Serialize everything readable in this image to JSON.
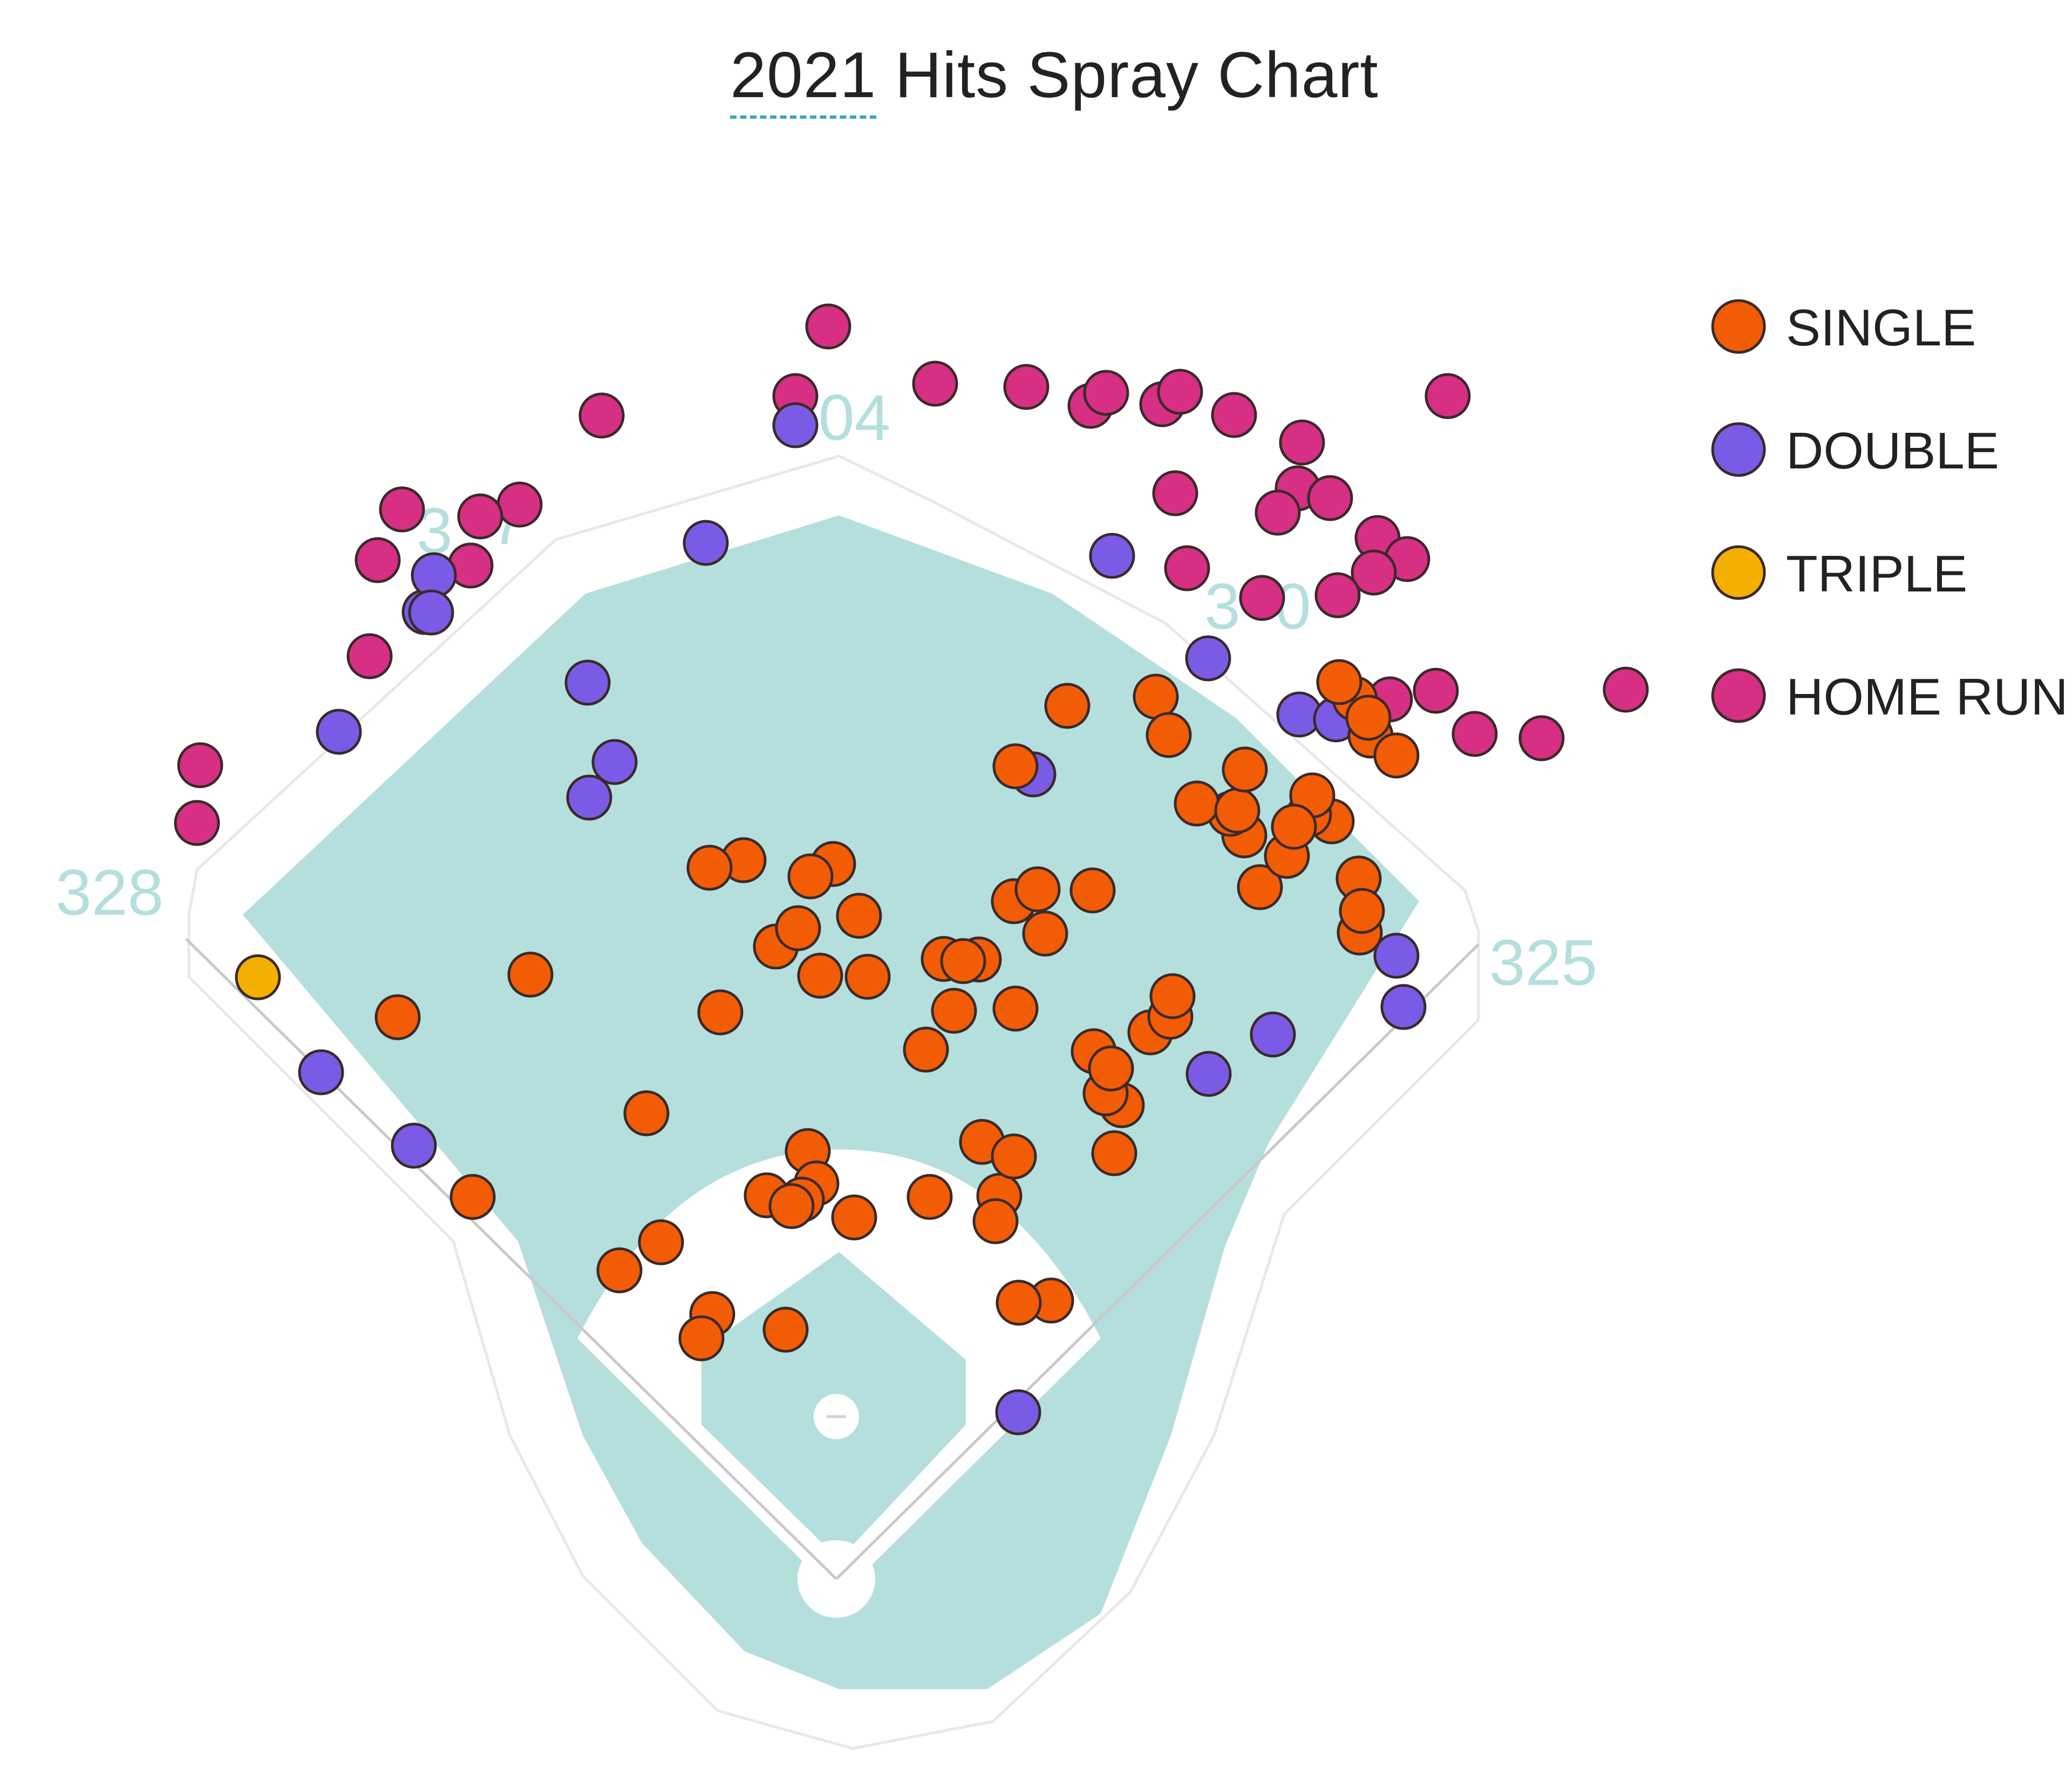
{
  "chart_data": {
    "type": "scatter",
    "title_year": "2021",
    "title_rest": " Hits Spray Chart",
    "colors": {
      "field": "#b4dfdc",
      "single": "#f25c05",
      "double": "#7b5be6",
      "triple": "#f4b000",
      "home_run": "#d62f84"
    },
    "fence_labels": {
      "left_line": "328",
      "left_center": "3",
      "left_center_suffix": "7",
      "center": "404",
      "right_center_a": "3",
      "right_center_b": "0",
      "right_line": "325"
    },
    "legend": [
      {
        "key": "single",
        "label": "SINGLE"
      },
      {
        "key": "double",
        "label": "DOUBLE"
      },
      {
        "key": "triple",
        "label": "TRIPLE"
      },
      {
        "key": "home_run",
        "label": "HOME RUN"
      }
    ],
    "points": {
      "single": [
        [
          1882,
          1420
        ],
        [
          1978,
          1308
        ],
        [
          2511,
          1295
        ],
        [
          2540,
          1363
        ],
        [
          2588,
          1400
        ],
        [
          2518,
          1628
        ],
        [
          2520,
          1728
        ],
        [
          2524,
          1688
        ],
        [
          1879,
          1670
        ],
        [
          1923,
          1648
        ],
        [
          2335,
          1644
        ],
        [
          2306,
          1548
        ],
        [
          2280,
          1508
        ],
        [
          2385,
          1586
        ],
        [
          2468,
          1522
        ],
        [
          2426,
          1509
        ],
        [
          2432,
          1474
        ],
        [
          2218,
          1489
        ],
        [
          2293,
          1502
        ],
        [
          2307,
          1426
        ],
        [
          2398,
          1532
        ],
        [
          1882,
          1869
        ],
        [
          2027,
          1948
        ],
        [
          2079,
          2048
        ],
        [
          2065,
          2137
        ],
        [
          2049,
          2026
        ],
        [
          2059,
          1980
        ],
        [
          2132,
          1913
        ],
        [
          2169,
          1884
        ],
        [
          2173,
          1846
        ],
        [
          1937,
          1730
        ],
        [
          1716,
          1945
        ],
        [
          1768,
          1873
        ],
        [
          1749,
          1777
        ],
        [
          1814,
          1778
        ],
        [
          1820,
          2116
        ],
        [
          1852,
          2216
        ],
        [
          1845,
          2263
        ],
        [
          1879,
          2143
        ],
        [
          1723,
          2218
        ],
        [
          1608,
          1810
        ],
        [
          1592,
          1697
        ],
        [
          1544,
          1601
        ],
        [
          1502,
          1624
        ],
        [
          1520,
          1808
        ],
        [
          1438,
          1754
        ],
        [
          1479,
          1720
        ],
        [
          1378,
          1594
        ],
        [
          1315,
          1608
        ],
        [
          1335,
          1876
        ],
        [
          1497,
          2133
        ],
        [
          1513,
          2193
        ],
        [
          1486,
          2223
        ],
        [
          1421,
          2215
        ],
        [
          1467,
          2235
        ],
        [
          1583,
          2256
        ],
        [
          1198,
          2063
        ],
        [
          1320,
          2435
        ],
        [
          1300,
          2480
        ],
        [
          1456,
          2464
        ],
        [
          1148,
          2354
        ],
        [
          1225,
          2302
        ],
        [
          983,
          1806
        ],
        [
          737,
          1885
        ],
        [
          876,
          2218
        ],
        [
          1948,
          2410
        ],
        [
          1888,
          2414
        ],
        [
          2482,
          1264
        ],
        [
          2536,
          1330
        ],
        [
          2142,
          1291
        ],
        [
          2166,
          1362
        ],
        [
          2025,
          1650
        ],
        [
          1785,
          1781
        ]
      ],
      "double": [
        [
          1474,
          788
        ],
        [
          1308,
          1006
        ],
        [
          787,
          1134
        ],
        [
          804,
          1066
        ],
        [
          799,
          1135
        ],
        [
          628,
          1356
        ],
        [
          1089,
          1265
        ],
        [
          1139,
          1412
        ],
        [
          1092,
          1478
        ],
        [
          2061,
          1030
        ],
        [
          2239,
          1220
        ],
        [
          2408,
          1324
        ],
        [
          2476,
          1333
        ],
        [
          1915,
          1435
        ],
        [
          2588,
          1771
        ],
        [
          2601,
          1866
        ],
        [
          2359,
          1917
        ],
        [
          2240,
          1990
        ],
        [
          595,
          1987
        ],
        [
          767,
          2123
        ],
        [
          1887,
          2617
        ]
      ],
      "triple": [
        [
          478,
          1811
        ]
      ],
      "home_run": [
        [
          1535,
          605
        ],
        [
          1474,
          734
        ],
        [
          1733,
          711
        ],
        [
          1902,
          717
        ],
        [
          2021,
          752
        ],
        [
          2050,
          728
        ],
        [
          2154,
          749
        ],
        [
          2187,
          726
        ],
        [
          2287,
          769
        ],
        [
          2413,
          820
        ],
        [
          2683,
          734
        ],
        [
          2178,
          914
        ],
        [
          2405,
          905
        ],
        [
          2465,
          923
        ],
        [
          2368,
          950
        ],
        [
          2553,
          997
        ],
        [
          2608,
          1036
        ],
        [
          2546,
          1061
        ],
        [
          2200,
          1053
        ],
        [
          2339,
          1108
        ],
        [
          2479,
          1103
        ],
        [
          2576,
          1296
        ],
        [
          2661,
          1280
        ],
        [
          2733,
          1360
        ],
        [
          2857,
          1368
        ],
        [
          3013,
          1278
        ],
        [
          1115,
          770
        ],
        [
          745,
          944
        ],
        [
          963,
          935
        ],
        [
          890,
          957
        ],
        [
          872,
          1048
        ],
        [
          700,
          1038
        ],
        [
          685,
          1216
        ],
        [
          371,
          1418
        ],
        [
          365,
          1525
        ]
      ]
    }
  }
}
